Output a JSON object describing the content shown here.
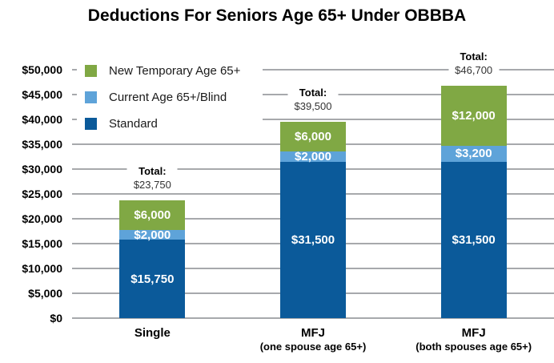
{
  "chart_data": {
    "type": "bar",
    "stacked": true,
    "title": "Deductions For Seniors Age 65+ Under OBBBA",
    "grid": true,
    "legend_position": "top-left-inside",
    "y_axis": {
      "min": 0,
      "max": 50000,
      "tick_step": 5000,
      "tick_labels": [
        "$0",
        "$5,000",
        "$10,000",
        "$15,000",
        "$20,000",
        "$25,000",
        "$30,000",
        "$35,000",
        "$40,000",
        "$45,000",
        "$50,000"
      ]
    },
    "categories": [
      {
        "line1": "Single",
        "line2": ""
      },
      {
        "line1": "MFJ",
        "line2": "(one spouse age 65+)"
      },
      {
        "line1": "MFJ",
        "line2": "(both spouses age 65+)"
      }
    ],
    "series": [
      {
        "name": "Standard",
        "color": "#0b5a9a",
        "values": [
          15750,
          31500,
          31500
        ],
        "labels": [
          "$15,750",
          "$31,500",
          "$31,500"
        ]
      },
      {
        "name": "Current Age 65+/Blind",
        "color": "#5ea3d9",
        "values": [
          2000,
          2000,
          3200
        ],
        "labels": [
          "$2,000",
          "$2,000",
          "$3,200"
        ]
      },
      {
        "name": "New Temporary Age 65+",
        "color": "#80a844",
        "values": [
          6000,
          6000,
          12000
        ],
        "labels": [
          "$6,000",
          "$6,000",
          "$12,000"
        ]
      }
    ],
    "totals": [
      {
        "label": "Total:",
        "value": "$23,750"
      },
      {
        "label": "Total:",
        "value": "$39,500"
      },
      {
        "label": "Total:",
        "value": "$46,700"
      }
    ],
    "legend": [
      {
        "label": "New Temporary Age 65+",
        "color": "#80a844"
      },
      {
        "label": "Current Age 65+/Blind",
        "color": "#5ea3d9"
      },
      {
        "label": "Standard",
        "color": "#0b5a9a"
      }
    ],
    "colors": {
      "gridline": "#a7a9ac",
      "bar_label_text": "#ffffff",
      "axis_text": "#000000"
    }
  }
}
